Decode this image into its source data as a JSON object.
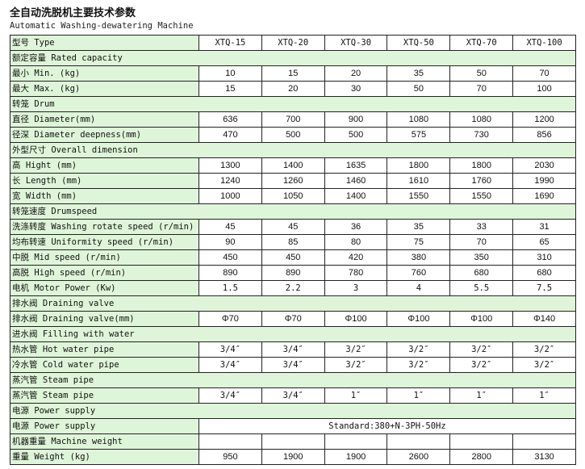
{
  "title": "全自动洗脱机主要技术参数",
  "subtitle": "Automatic Washing-dewatering Machine",
  "colors": {
    "label_bg": "#dff5d9",
    "value_bg": "#ffffff",
    "border": "#222222"
  },
  "header": {
    "label": "型号 Type",
    "models": [
      "XTQ-15",
      "XTQ-20",
      "XTQ-30",
      "XTQ-50",
      "XTQ-70",
      "XTQ-100"
    ]
  },
  "rows": [
    {
      "kind": "section",
      "label": "额定容量 Rated capacity"
    },
    {
      "kind": "data",
      "label": "最小 Min. (kg)",
      "values": [
        "10",
        "15",
        "20",
        "35",
        "50",
        "70"
      ]
    },
    {
      "kind": "data",
      "label": "最大 Max. (kg)",
      "values": [
        "15",
        "20",
        "30",
        "50",
        "70",
        "100"
      ]
    },
    {
      "kind": "section",
      "label": "转笼 Drum"
    },
    {
      "kind": "data",
      "label": "直径 Diameter(mm)",
      "values": [
        "636",
        "700",
        "900",
        "1080",
        "1080",
        "1200"
      ]
    },
    {
      "kind": "data",
      "label": "径深 Diameter deepness(mm)",
      "values": [
        "470",
        "500",
        "500",
        "575",
        "730",
        "856"
      ]
    },
    {
      "kind": "section",
      "label": "外型尺寸 Overall dimension"
    },
    {
      "kind": "data",
      "label": "高 Hight (mm)",
      "values": [
        "1300",
        "1400",
        "1635",
        "1800",
        "1800",
        "2030"
      ]
    },
    {
      "kind": "data",
      "label": "长 Length (mm)",
      "values": [
        "1240",
        "1260",
        "1460",
        "1610",
        "1760",
        "1990"
      ]
    },
    {
      "kind": "data",
      "label": "宽 Width (mm)",
      "values": [
        "1000",
        "1050",
        "1400",
        "1550",
        "1550",
        "1690"
      ]
    },
    {
      "kind": "section",
      "label": "转笼速度 Drumspeed"
    },
    {
      "kind": "data",
      "label": "洗涤转度 Washing rotate speed (r/min)",
      "values": [
        "45",
        "45",
        "36",
        "35",
        "33",
        "31"
      ]
    },
    {
      "kind": "data",
      "label": "均布转速 Uniformity speed (r/min)",
      "values": [
        "90",
        "85",
        "80",
        "75",
        "70",
        "65"
      ]
    },
    {
      "kind": "data",
      "label": "中脱 Mid speed (r/min)",
      "values": [
        "450",
        "450",
        "420",
        "380",
        "350",
        "310"
      ]
    },
    {
      "kind": "data",
      "label": "高脱 High speed (r/min)",
      "values": [
        "890",
        "890",
        "780",
        "760",
        "680",
        "680"
      ]
    },
    {
      "kind": "data",
      "mono": true,
      "label": "电机 Motor Power (Kw)",
      "values": [
        "1.5",
        "2.2",
        "3",
        "4",
        "5.5",
        "7.5"
      ]
    },
    {
      "kind": "section",
      "label": "排水阀 Draining valve"
    },
    {
      "kind": "data",
      "label": "排水阀 Draining valve(mm)",
      "values": [
        "Φ70",
        "Φ70",
        "Φ100",
        "Φ100",
        "Φ100",
        "Φ140"
      ]
    },
    {
      "kind": "section",
      "label": "进水阀 Filling with water"
    },
    {
      "kind": "data",
      "mono": true,
      "label": "热水管 Hot water pipe",
      "values": [
        "3/4″",
        "3/4″",
        "3/2″",
        "3/2″",
        "3/2″",
        "3/2″"
      ]
    },
    {
      "kind": "data",
      "mono": true,
      "label": "冷水管 Cold   water pipe",
      "values": [
        "3/4″",
        "3/4″",
        "3/2″",
        "3/2″",
        "3/2″",
        "3/2″"
      ]
    },
    {
      "kind": "section",
      "label": "蒸汽管 Steam pipe"
    },
    {
      "kind": "data",
      "mono": true,
      "label": "蒸汽管 Steam pipe",
      "values": [
        "3/4″",
        "3/4″",
        "1″",
        "1″",
        "1″",
        "1″"
      ]
    },
    {
      "kind": "section",
      "label": "电源 Power supply"
    },
    {
      "kind": "span",
      "mono": true,
      "label": "电源 Power supply",
      "value": "Standard:380+N-3PH-50Hz"
    },
    {
      "kind": "data",
      "label": "机器重量 Machine weight",
      "values": [
        "",
        "",
        "",
        "",
        "",
        ""
      ]
    },
    {
      "kind": "data",
      "label": "重量 Weight (kg)",
      "values": [
        "950",
        "1900",
        "1900",
        "2600",
        "2800",
        "3130"
      ]
    }
  ]
}
